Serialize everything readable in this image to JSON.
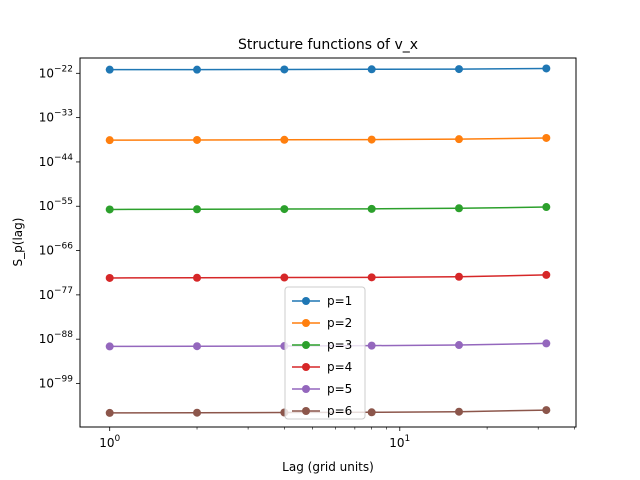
{
  "chart_data": {
    "type": "line",
    "title": "Structure functions of v_x",
    "xlabel": "Lag (grid units)",
    "ylabel": "S_p(lag)",
    "x_scale": "log",
    "y_scale": "log",
    "xlim": [
      0.79,
      40.5
    ],
    "ylim_log10": [
      -109.8,
      -18.2
    ],
    "x": [
      1,
      2,
      4,
      8,
      16,
      32
    ],
    "x_ticks": [
      {
        "value": 1,
        "base": "10",
        "exp": "0"
      },
      {
        "value": 10,
        "base": "10",
        "exp": "1"
      }
    ],
    "y_ticks": [
      {
        "log10": -22,
        "base": "10",
        "exp": "−22"
      },
      {
        "log10": -33,
        "base": "10",
        "exp": "−33"
      },
      {
        "log10": -44,
        "base": "10",
        "exp": "−44"
      },
      {
        "log10": -55,
        "base": "10",
        "exp": "−55"
      },
      {
        "log10": -66,
        "base": "10",
        "exp": "−66"
      },
      {
        "log10": -77,
        "base": "10",
        "exp": "−77"
      },
      {
        "log10": -88,
        "base": "10",
        "exp": "−88"
      },
      {
        "log10": -99,
        "base": "10",
        "exp": "−99"
      }
    ],
    "series": [
      {
        "name": "p=1",
        "color": "#1f77b4",
        "log10_values": [
          -21.1,
          -21.1,
          -21.05,
          -21.0,
          -20.95,
          -20.8
        ]
      },
      {
        "name": "p=2",
        "color": "#ff7f0e",
        "log10_values": [
          -38.6,
          -38.55,
          -38.5,
          -38.45,
          -38.35,
          -38.05
        ]
      },
      {
        "name": "p=3",
        "color": "#2ca02c",
        "log10_values": [
          -55.8,
          -55.75,
          -55.7,
          -55.65,
          -55.5,
          -55.2
        ]
      },
      {
        "name": "p=4",
        "color": "#d62728",
        "log10_values": [
          -72.8,
          -72.75,
          -72.7,
          -72.65,
          -72.5,
          -72.05
        ]
      },
      {
        "name": "p=5",
        "color": "#9467bd",
        "log10_values": [
          -89.8,
          -89.75,
          -89.7,
          -89.6,
          -89.45,
          -89.05
        ]
      },
      {
        "name": "p=6",
        "color": "#8c564b",
        "log10_values": [
          -106.3,
          -106.25,
          -106.2,
          -106.15,
          -106.0,
          -105.6
        ]
      }
    ],
    "grid": false,
    "legend_position": "lower-center"
  }
}
